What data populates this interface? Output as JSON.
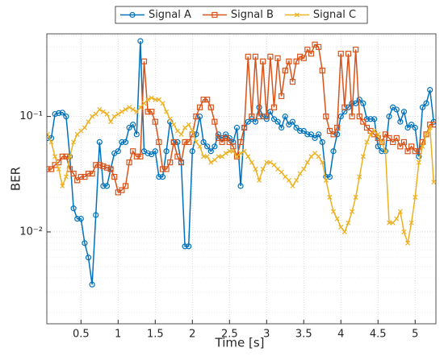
{
  "chart_data": {
    "type": "line",
    "xlabel": "Time [s]",
    "ylabel": "BER",
    "yscale": "log",
    "grid": true,
    "minor_grid": true,
    "legend": "top",
    "xlim": [
      0.04,
      5.28
    ],
    "ylim": [
      0.0016,
      0.52
    ],
    "xticks": [
      0.5,
      1,
      1.5,
      2,
      2.5,
      3,
      3.5,
      4,
      4.5,
      5
    ],
    "yticks": [
      {
        "value": 0.01,
        "label": "10⁻²"
      },
      {
        "value": 0.1,
        "label": "10⁻¹"
      }
    ],
    "yminorticks": [
      0.002,
      0.003,
      0.004,
      0.005,
      0.006,
      0.007,
      0.008,
      0.009,
      0.02,
      0.03,
      0.04,
      0.05,
      0.06,
      0.07,
      0.08,
      0.09,
      0.2,
      0.3,
      0.4,
      0.5
    ],
    "x": [
      0.05,
      0.1,
      0.15,
      0.2,
      0.25,
      0.3,
      0.35,
      0.4,
      0.45,
      0.5,
      0.55,
      0.6,
      0.65,
      0.7,
      0.75,
      0.8,
      0.85,
      0.9,
      0.95,
      1.0,
      1.05,
      1.1,
      1.15,
      1.2,
      1.25,
      1.3,
      1.35,
      1.4,
      1.45,
      1.5,
      1.55,
      1.6,
      1.65,
      1.7,
      1.75,
      1.8,
      1.85,
      1.9,
      1.95,
      2.0,
      2.05,
      2.1,
      2.15,
      2.2,
      2.25,
      2.3,
      2.35,
      2.4,
      2.45,
      2.5,
      2.55,
      2.6,
      2.65,
      2.7,
      2.75,
      2.8,
      2.85,
      2.9,
      2.95,
      3.0,
      3.05,
      3.1,
      3.15,
      3.2,
      3.25,
      3.3,
      3.35,
      3.4,
      3.45,
      3.5,
      3.55,
      3.6,
      3.65,
      3.7,
      3.75,
      3.8,
      3.85,
      3.9,
      3.95,
      4.0,
      4.05,
      4.1,
      4.15,
      4.2,
      4.25,
      4.3,
      4.35,
      4.4,
      4.45,
      4.5,
      4.55,
      4.6,
      4.65,
      4.7,
      4.75,
      4.8,
      4.85,
      4.9,
      4.95,
      5.0,
      5.05,
      5.1,
      5.15,
      5.2,
      5.25
    ],
    "series": [
      {
        "name": "Signal A",
        "color": "#0072BD",
        "marker": "circle",
        "values": [
          0.065,
          0.065,
          0.105,
          0.107,
          0.108,
          0.1,
          0.045,
          0.016,
          0.013,
          0.013,
          0.008,
          0.006,
          0.0035,
          0.014,
          0.06,
          0.025,
          0.025,
          0.035,
          0.048,
          0.05,
          0.06,
          0.06,
          0.08,
          0.085,
          0.07,
          0.45,
          0.05,
          0.048,
          0.047,
          0.05,
          0.03,
          0.03,
          0.05,
          0.09,
          0.06,
          0.06,
          0.04,
          0.0075,
          0.0075,
          0.05,
          0.07,
          0.1,
          0.06,
          0.055,
          0.05,
          0.055,
          0.07,
          0.065,
          0.07,
          0.065,
          0.06,
          0.08,
          0.025,
          0.08,
          0.09,
          0.095,
          0.09,
          0.12,
          0.1,
          0.095,
          0.11,
          0.095,
          0.09,
          0.08,
          0.1,
          0.085,
          0.09,
          0.08,
          0.075,
          0.075,
          0.07,
          0.07,
          0.065,
          0.07,
          0.06,
          0.03,
          0.03,
          0.05,
          0.07,
          0.1,
          0.11,
          0.12,
          0.13,
          0.13,
          0.14,
          0.13,
          0.095,
          0.095,
          0.095,
          0.055,
          0.05,
          0.05,
          0.1,
          0.12,
          0.115,
          0.09,
          0.11,
          0.08,
          0.085,
          0.08,
          0.045,
          0.12,
          0.13,
          0.17,
          0.09
        ]
      },
      {
        "name": "Signal B",
        "color": "#D95319",
        "marker": "square",
        "values": [
          0.035,
          0.035,
          0.038,
          0.04,
          0.045,
          0.045,
          0.035,
          0.032,
          0.028,
          0.03,
          0.03,
          0.032,
          0.032,
          0.038,
          0.038,
          0.037,
          0.036,
          0.035,
          0.03,
          0.022,
          0.023,
          0.025,
          0.04,
          0.05,
          0.045,
          0.045,
          0.3,
          0.11,
          0.11,
          0.09,
          0.06,
          0.035,
          0.035,
          0.04,
          0.06,
          0.045,
          0.04,
          0.06,
          0.06,
          0.07,
          0.1,
          0.12,
          0.14,
          0.14,
          0.12,
          0.09,
          0.065,
          0.06,
          0.065,
          0.06,
          0.055,
          0.045,
          0.06,
          0.08,
          0.33,
          0.1,
          0.33,
          0.1,
          0.3,
          0.1,
          0.33,
          0.12,
          0.32,
          0.15,
          0.25,
          0.3,
          0.2,
          0.3,
          0.33,
          0.32,
          0.38,
          0.35,
          0.42,
          0.4,
          0.25,
          0.1,
          0.075,
          0.07,
          0.08,
          0.35,
          0.12,
          0.35,
          0.1,
          0.38,
          0.1,
          0.09,
          0.08,
          0.075,
          0.07,
          0.065,
          0.06,
          0.07,
          0.065,
          0.06,
          0.065,
          0.055,
          0.06,
          0.05,
          0.055,
          0.05,
          0.05,
          0.06,
          0.07,
          0.085,
          0.085
        ]
      },
      {
        "name": "Signal C",
        "color": "#EDB120",
        "marker": "x",
        "values": [
          0.07,
          0.06,
          0.045,
          0.035,
          0.025,
          0.03,
          0.045,
          0.06,
          0.07,
          0.075,
          0.08,
          0.09,
          0.1,
          0.105,
          0.115,
          0.11,
          0.105,
          0.09,
          0.1,
          0.105,
          0.11,
          0.115,
          0.12,
          0.115,
          0.11,
          0.12,
          0.13,
          0.14,
          0.145,
          0.14,
          0.14,
          0.13,
          0.11,
          0.095,
          0.085,
          0.075,
          0.07,
          0.08,
          0.085,
          0.075,
          0.06,
          0.055,
          0.045,
          0.045,
          0.04,
          0.042,
          0.045,
          0.045,
          0.048,
          0.05,
          0.05,
          0.045,
          0.048,
          0.05,
          0.045,
          0.04,
          0.035,
          0.028,
          0.035,
          0.04,
          0.04,
          0.038,
          0.035,
          0.033,
          0.03,
          0.028,
          0.025,
          0.028,
          0.032,
          0.035,
          0.04,
          0.045,
          0.048,
          0.045,
          0.04,
          0.028,
          0.02,
          0.015,
          0.013,
          0.011,
          0.01,
          0.012,
          0.015,
          0.02,
          0.03,
          0.045,
          0.06,
          0.07,
          0.075,
          0.07,
          0.06,
          0.05,
          0.012,
          0.012,
          0.013,
          0.015,
          0.01,
          0.008,
          0.012,
          0.02,
          0.04,
          0.055,
          0.07,
          0.08,
          0.027
        ]
      }
    ]
  }
}
